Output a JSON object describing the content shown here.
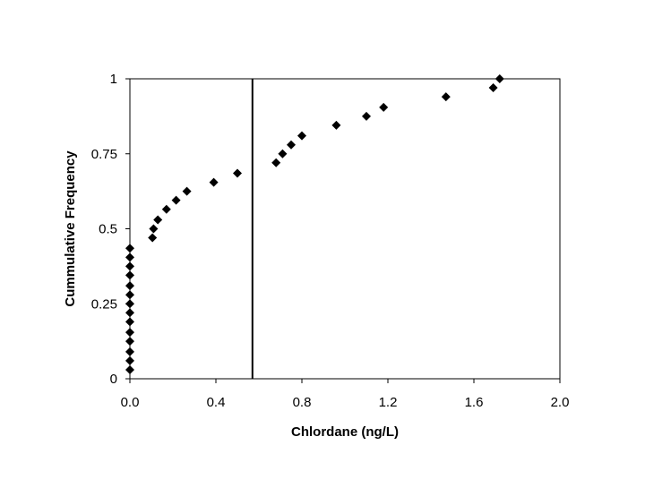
{
  "chart_data": {
    "type": "scatter",
    "title": "",
    "xlabel": "Chlordane (ng/L)",
    "ylabel": "Cummulative Frequency",
    "xlim": [
      0,
      2.0
    ],
    "ylim": [
      0,
      1
    ],
    "xticks": [
      0,
      0.4,
      0.8,
      1.2,
      1.6,
      2.0
    ],
    "xtick_labels": [
      "0.0",
      "0.4",
      "0.8",
      "1.2",
      "1.6",
      "2.0"
    ],
    "yticks": [
      0,
      0.25,
      0.5,
      0.75,
      1
    ],
    "ytick_labels": [
      "0",
      "0.25",
      "0.5",
      "0.75",
      "1"
    ],
    "grid": false,
    "legend": "none",
    "marker": "diamond",
    "marker_color": "#000000",
    "vertical_reference_line": {
      "x": 0.57,
      "color": "#000000"
    },
    "series": [
      {
        "points": [
          {
            "x": 0.0,
            "y": 0.03
          },
          {
            "x": 0.0,
            "y": 0.06
          },
          {
            "x": 0.0,
            "y": 0.09
          },
          {
            "x": 0.0,
            "y": 0.125
          },
          {
            "x": 0.0,
            "y": 0.155
          },
          {
            "x": 0.0,
            "y": 0.19
          },
          {
            "x": 0.0,
            "y": 0.22
          },
          {
            "x": 0.0,
            "y": 0.25
          },
          {
            "x": 0.0,
            "y": 0.28
          },
          {
            "x": 0.0,
            "y": 0.31
          },
          {
            "x": 0.0,
            "y": 0.345
          },
          {
            "x": 0.0,
            "y": 0.375
          },
          {
            "x": 0.0,
            "y": 0.405
          },
          {
            "x": 0.0,
            "y": 0.435
          },
          {
            "x": 0.105,
            "y": 0.47
          },
          {
            "x": 0.11,
            "y": 0.5
          },
          {
            "x": 0.13,
            "y": 0.53
          },
          {
            "x": 0.17,
            "y": 0.565
          },
          {
            "x": 0.215,
            "y": 0.595
          },
          {
            "x": 0.265,
            "y": 0.625
          },
          {
            "x": 0.39,
            "y": 0.655
          },
          {
            "x": 0.5,
            "y": 0.685
          },
          {
            "x": 0.68,
            "y": 0.72
          },
          {
            "x": 0.71,
            "y": 0.75
          },
          {
            "x": 0.75,
            "y": 0.78
          },
          {
            "x": 0.8,
            "y": 0.81
          },
          {
            "x": 0.96,
            "y": 0.845
          },
          {
            "x": 1.1,
            "y": 0.875
          },
          {
            "x": 1.18,
            "y": 0.905
          },
          {
            "x": 1.47,
            "y": 0.94
          },
          {
            "x": 1.69,
            "y": 0.97
          },
          {
            "x": 1.72,
            "y": 1.0
          }
        ]
      }
    ]
  }
}
